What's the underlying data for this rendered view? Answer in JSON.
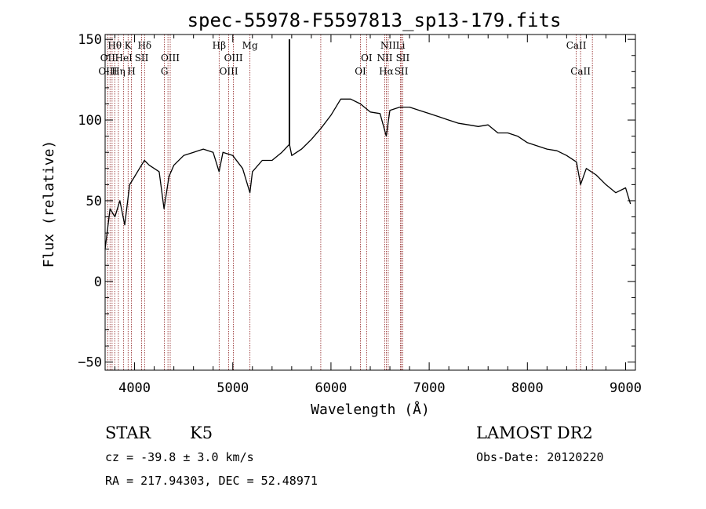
{
  "chart_data": {
    "type": "line",
    "title": "spec-55978-F5597813_sp13-179.fits",
    "xlabel": "Wavelength (Å)",
    "ylabel": "Flux (relative)",
    "xlim": [
      3700,
      9100
    ],
    "ylim": [
      -55,
      153
    ],
    "xticks": [
      4000,
      5000,
      6000,
      7000,
      8000,
      9000
    ],
    "yticks": [
      -50,
      0,
      50,
      100,
      150
    ],
    "grid": false,
    "line_color": "#000000",
    "marker_line_color": "#8b1a1a",
    "spectrum": {
      "x": [
        3700,
        3750,
        3800,
        3850,
        3900,
        3950,
        4000,
        4050,
        4100,
        4150,
        4200,
        4250,
        4300,
        4350,
        4400,
        4500,
        4600,
        4700,
        4800,
        4861,
        4900,
        5000,
        5100,
        5175,
        5200,
        5300,
        5400,
        5500,
        5577,
        5600,
        5700,
        5800,
        5900,
        6000,
        6100,
        6200,
        6300,
        6400,
        6500,
        6563,
        6600,
        6700,
        6800,
        6900,
        7000,
        7100,
        7200,
        7300,
        7400,
        7500,
        7600,
        7700,
        7800,
        7900,
        8000,
        8100,
        8200,
        8300,
        8400,
        8500,
        8542,
        8600,
        8700,
        8800,
        8900,
        9000,
        9050
      ],
      "y": [
        20,
        45,
        40,
        50,
        35,
        60,
        65,
        70,
        75,
        72,
        70,
        68,
        45,
        65,
        72,
        78,
        80,
        82,
        80,
        68,
        80,
        78,
        70,
        55,
        68,
        75,
        75,
        80,
        85,
        78,
        82,
        88,
        95,
        103,
        113,
        113,
        110,
        105,
        104,
        90,
        106,
        108,
        108,
        106,
        104,
        102,
        100,
        98,
        97,
        96,
        97,
        92,
        92,
        90,
        86,
        84,
        82,
        81,
        78,
        74,
        60,
        70,
        66,
        60,
        55,
        58,
        48
      ]
    },
    "spike": {
      "x": 5577,
      "y": 150
    },
    "lines": [
      {
        "label": "Hθ",
        "x": 3798,
        "row": 1
      },
      {
        "label": "K",
        "x": 3934,
        "row": 1
      },
      {
        "label": "Hδ",
        "x": 4102,
        "row": 1
      },
      {
        "label": "Hβ",
        "x": 4861,
        "row": 1
      },
      {
        "label": "Mg",
        "x": 5175,
        "row": 1
      },
      {
        "label": "NII",
        "x": 6583,
        "row": 1
      },
      {
        "label": "Li",
        "x": 6708,
        "row": 1
      },
      {
        "label": "CaII",
        "x": 8498,
        "row": 1
      },
      {
        "label": "OII",
        "x": 3727,
        "row": 2
      },
      {
        "label": "HeI",
        "x": 3889,
        "row": 2
      },
      {
        "label": "SII",
        "x": 4072,
        "row": 2
      },
      {
        "label": "OIII",
        "x": 4363,
        "row": 2
      },
      {
        "label": "OIII",
        "x": 5007,
        "row": 2
      },
      {
        "label": "OI",
        "x": 6363,
        "row": 2
      },
      {
        "label": "NII",
        "x": 6548,
        "row": 2
      },
      {
        "label": "SII",
        "x": 6731,
        "row": 2
      },
      {
        "label": "OIII",
        "x": 3727,
        "row": 3
      },
      {
        "label": "Hη",
        "x": 3835,
        "row": 3
      },
      {
        "label": "H",
        "x": 3968,
        "row": 3
      },
      {
        "label": "G",
        "x": 4304,
        "row": 3
      },
      {
        "label": "OIII",
        "x": 4959,
        "row": 3
      },
      {
        "label": "OI",
        "x": 6300,
        "row": 3
      },
      {
        "label": "Hα",
        "x": 6563,
        "row": 3
      },
      {
        "label": "SII",
        "x": 6717,
        "row": 3
      },
      {
        "label": "CaII",
        "x": 8542,
        "row": 3
      }
    ],
    "extra_marker_x": [
      3750,
      3771,
      4340,
      5896,
      8662
    ]
  },
  "info": {
    "object_class": "STAR",
    "subclass": "K5",
    "survey": "LAMOST DR2",
    "cz": "cz = -39.8 ± 3.0 km/s",
    "obs_date": "Obs-Date: 20120220",
    "coords": "RA = 217.94303, DEC =  52.48971"
  }
}
